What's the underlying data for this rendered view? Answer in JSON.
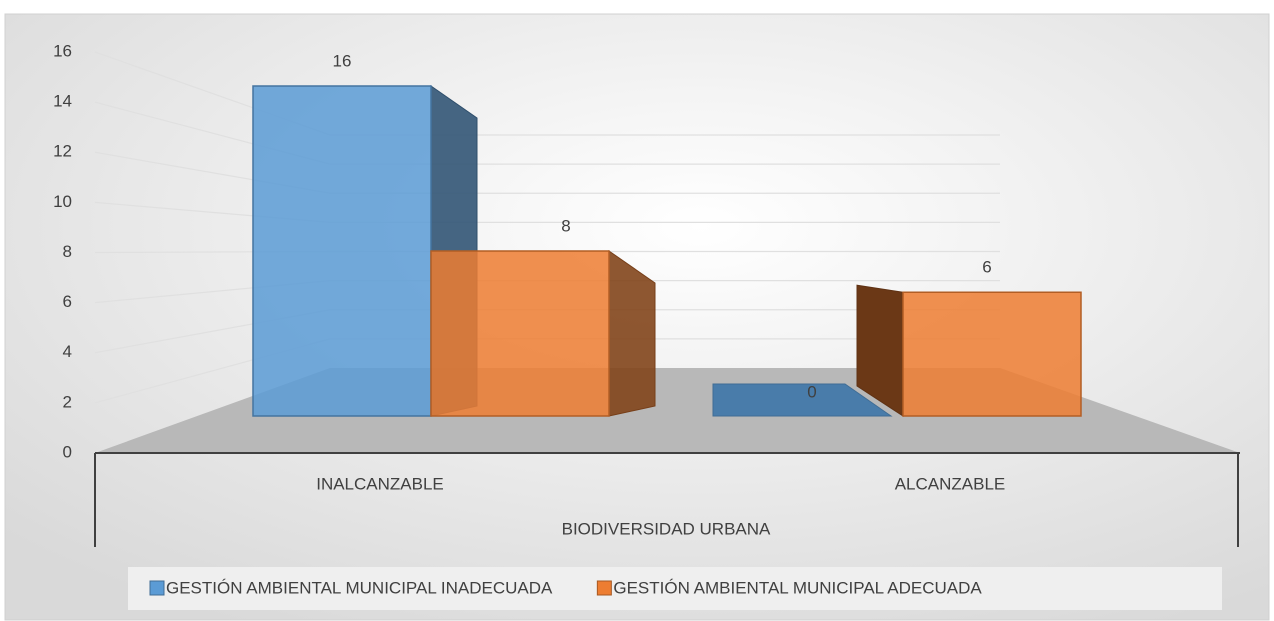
{
  "chart_data": {
    "type": "bar3d",
    "x_label": "BIODIVERSIDAD URBANA",
    "categories": [
      "INALCANZABLE",
      "ALCANZABLE"
    ],
    "series": [
      {
        "name": "GESTIÓN AMBIENTAL MUNICIPAL INADECUADA",
        "color": "#5b9bd5",
        "values": [
          16,
          0
        ]
      },
      {
        "name": "GESTIÓN AMBIENTAL MUNICIPAL ADECUADA",
        "color": "#ed7d31",
        "values": [
          8,
          6
        ]
      }
    ],
    "ylim": [
      0,
      16
    ],
    "yticks": [
      0,
      2,
      4,
      6,
      8,
      10,
      12,
      14,
      16
    ],
    "grid": true,
    "legend": "bottom"
  }
}
